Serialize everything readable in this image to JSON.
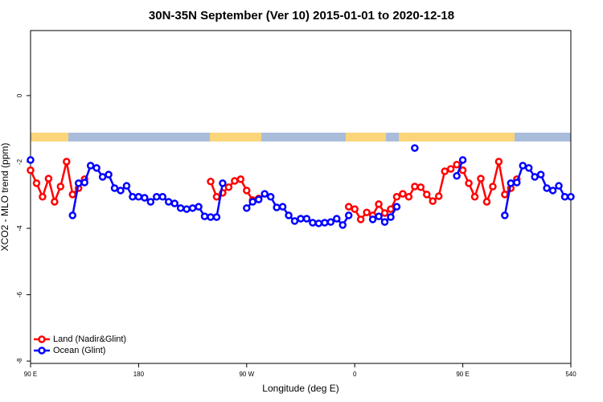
{
  "chart_data": {
    "type": "line",
    "title": "30N-35N September (Ver 10)   2015-01-01 to 2020-12-18",
    "x_label": "Longitude (deg E)",
    "y_label": "XCO2 - MLO trend (ppm)",
    "x": [
      90,
      95,
      100,
      105,
      110,
      115,
      120,
      125,
      130,
      135,
      140,
      145,
      150,
      155,
      160,
      165,
      170,
      175,
      180,
      185,
      190,
      195,
      200,
      205,
      210,
      215,
      220,
      225,
      230,
      235,
      240,
      245,
      250,
      255,
      260,
      265,
      270,
      275,
      280,
      285,
      290,
      295,
      300,
      305,
      310,
      315,
      320,
      325,
      330,
      335,
      340,
      345,
      350,
      355,
      360,
      365,
      370,
      375,
      380,
      385,
      390,
      395,
      400,
      405,
      410,
      415,
      420,
      425,
      430,
      435,
      440,
      445,
      450,
      455,
      460,
      465,
      470,
      475,
      480,
      485,
      490,
      495,
      500,
      505,
      510,
      515,
      520,
      525,
      530,
      535,
      540
    ],
    "series": [
      {
        "name": "Land (Nadir&Glint)",
        "color": "#ff0000",
        "values": [
          -2.25,
          -2.64,
          -3.05,
          -2.5,
          -3.2,
          -2.74,
          -1.99,
          -2.98,
          -2.79,
          -2.52,
          null,
          null,
          null,
          null,
          null,
          null,
          null,
          null,
          null,
          null,
          null,
          null,
          null,
          null,
          null,
          null,
          null,
          null,
          null,
          null,
          -2.59,
          -3.05,
          -2.93,
          -2.76,
          -2.57,
          -2.52,
          -2.86,
          -3.15,
          -3.1,
          null,
          null,
          null,
          null,
          null,
          null,
          null,
          null,
          null,
          null,
          null,
          null,
          null,
          null,
          -3.35,
          -3.42,
          -3.73,
          -3.52,
          -3.61,
          -3.27,
          -3.54,
          -3.42,
          -3.05,
          -2.96,
          -3.05,
          -2.74,
          -2.76,
          -2.98,
          -3.18,
          -3.03,
          -2.28,
          -2.21,
          -2.08,
          -2.25,
          -2.64,
          -3.05,
          -2.5,
          -3.2,
          -2.74,
          -1.99,
          -2.98,
          -2.79,
          -2.52,
          null,
          null,
          null,
          null,
          null,
          null,
          null,
          null,
          null
        ]
      },
      {
        "name": "Ocean (Glint)",
        "color": "#0000ff",
        "values": [
          -1.94,
          null,
          null,
          null,
          null,
          null,
          null,
          -3.61,
          -2.64,
          -2.62,
          -2.11,
          -2.18,
          -2.45,
          -2.38,
          -2.79,
          -2.86,
          -2.72,
          -3.05,
          -3.05,
          -3.08,
          -3.2,
          -3.05,
          -3.05,
          -3.2,
          -3.25,
          -3.39,
          -3.42,
          -3.39,
          -3.35,
          -3.64,
          -3.66,
          -3.66,
          -2.64,
          null,
          null,
          null,
          -3.39,
          -3.2,
          -3.13,
          -2.96,
          -3.05,
          -3.37,
          -3.35,
          -3.61,
          -3.78,
          -3.71,
          -3.71,
          -3.83,
          -3.85,
          -3.83,
          -3.81,
          -3.71,
          -3.9,
          -3.61,
          null,
          null,
          null,
          -3.73,
          -3.64,
          -3.81,
          -3.66,
          -3.35,
          null,
          null,
          -1.58,
          null,
          null,
          null,
          null,
          null,
          null,
          -2.42,
          -1.94,
          null,
          null,
          null,
          null,
          null,
          null,
          -3.61,
          -2.64,
          -2.62,
          -2.11,
          -2.18,
          -2.45,
          -2.38,
          -2.79,
          -2.86,
          -2.72,
          -3.05,
          -3.05
        ]
      }
    ],
    "xlim": [
      90,
      540
    ],
    "xticks": [
      {
        "value": 90,
        "label": "90 E"
      },
      180,
      {
        "value": 270,
        "label": "90 W"
      },
      {
        "value": 360,
        "label": "0"
      },
      {
        "value": 450,
        "label": "90 E"
      },
      540
    ],
    "ylim": [
      -8.07,
      1.96
    ],
    "yticks": [
      0,
      -2,
      -4,
      -6,
      -8
    ],
    "legend": "bottom-left"
  }
}
